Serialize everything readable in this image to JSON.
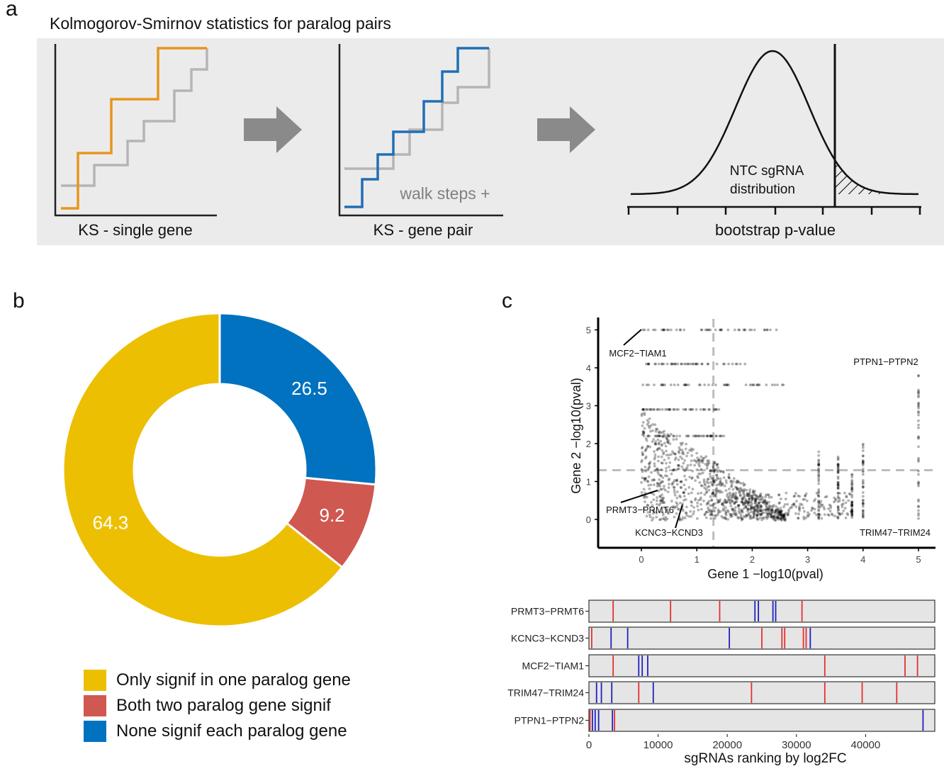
{
  "panel_labels": {
    "a": "a",
    "b": "b",
    "c": "c"
  },
  "panel_a": {
    "title": "Kolmogorov-Smirnov statistics for paralog pairs",
    "step1_caption": "KS - single gene",
    "step2_caption": "KS - gene pair",
    "step2_annotation": "walk steps +",
    "step3_caption": "bootstrap p-value",
    "step3_dist_label_line1": "NTC sgRNA",
    "step3_dist_label_line2": "distribution",
    "colors": {
      "orange": "#E8961E",
      "blue": "#1F6FB5",
      "grey": "#B5B5B5",
      "background": "#EBEBEB",
      "arrow": "#8A8A8A"
    }
  },
  "legend": [
    {
      "label": "Only signif in one paralog gene",
      "color": "#EDBF02"
    },
    {
      "label": "Both two paralog gene signif",
      "color": "#CF5850"
    },
    {
      "label": "None signif each paralog gene",
      "color": "#0072BF"
    }
  ],
  "chart_data": [
    {
      "type": "pie",
      "variant": "donut",
      "slices": [
        {
          "label": "None signif each paralog gene",
          "value": 26.5,
          "display": "26.5",
          "color": "#0072BF"
        },
        {
          "label": "Both two paralog gene signif",
          "value": 9.2,
          "display": "9.2",
          "color": "#CF5850"
        },
        {
          "label": "Only signif in one paralog gene",
          "value": 64.3,
          "display": "64.3",
          "color": "#EDBF02"
        }
      ]
    },
    {
      "type": "scatter",
      "xlabel": "Gene 1 −log10(pval)",
      "ylabel": "Gene 2 −log10(pval)",
      "xlim": [
        -0.75,
        5.25
      ],
      "ylim": [
        -0.75,
        5.2
      ],
      "xticks": [
        0,
        1,
        2,
        3,
        4,
        5
      ],
      "yticks": [
        0,
        1,
        2,
        3,
        4,
        5
      ],
      "threshold": 1.3,
      "annotations": [
        {
          "label": "MCF2−TIAM1",
          "x": 0.0,
          "y": 5.0
        },
        {
          "label": "PTPN1−PTPN2",
          "x": 5.0,
          "y": 3.9
        },
        {
          "label": "PRMT3−PRMT6",
          "x": 0.3,
          "y": 0.8
        },
        {
          "label": "KCNC3−KCND3",
          "x": 0.8,
          "y": 0.35
        },
        {
          "label": "TRIM47−TRIM24",
          "x": 5.0,
          "y": 0.0
        }
      ]
    },
    {
      "type": "strip",
      "xlabel": "sgRNAs ranking by log2FC",
      "xlim": [
        0,
        50000
      ],
      "xticks": [
        0,
        10000,
        20000,
        30000,
        40000
      ],
      "rows": [
        {
          "label": "PRMT3−PRMT6",
          "red": [
            3500,
            11800,
            18900,
            30800
          ],
          "blue": [
            24000,
            24500,
            26600,
            27000
          ]
        },
        {
          "label": "KCNC3−KCND3",
          "red": [
            400,
            25000,
            27900,
            28300,
            31000,
            31400
          ],
          "blue": [
            3200,
            5600,
            20300,
            32000
          ]
        },
        {
          "label": "MCF2−TIAM1",
          "red": [
            3500,
            34100,
            45700,
            47500
          ],
          "blue": [
            7200,
            7700,
            8500
          ]
        },
        {
          "label": "TRIM47−TRIM24",
          "red": [
            7200,
            23500,
            34100,
            39500,
            44500
          ],
          "blue": [
            1100,
            1800,
            3300,
            9300
          ]
        },
        {
          "label": "PTPN1−PTPN2",
          "red": [
            150,
            3700
          ],
          "blue": [
            500,
            900,
            1400,
            3400,
            48300
          ]
        }
      ]
    }
  ]
}
